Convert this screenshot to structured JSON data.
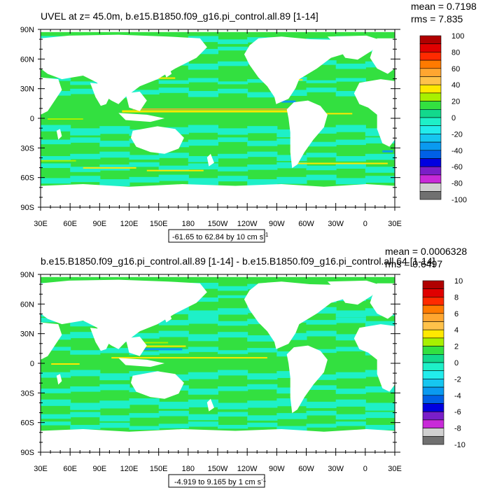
{
  "panels": [
    {
      "title": "UVEL at z=  45.0m, b.e15.B1850.f09_g16.pi_control.all.89 [1-14]",
      "stats": {
        "mean": "mean = 0.7198",
        "rms": "rms = 7.835"
      },
      "range_label": "-61.65 to 62.84 by 10 cm s",
      "range_unit_exp": "-1",
      "colorbar_labels": [
        "100",
        "80",
        "60",
        "40",
        "20",
        "0",
        "-20",
        "-40",
        "-60",
        "-80",
        "-100"
      ],
      "variant": "a"
    },
    {
      "title": "b.e15.B1850.f09_g16.pi_control.all.89 [1-14] - b.e15.B1850.f09_g16.pi_control.all.64 [1-14]",
      "stats": {
        "mean": "mean = 0.0006328",
        "rms": "rms = 0.6497"
      },
      "range_label": "-4.919 to 9.165 by 1 cm s",
      "range_unit_exp": "-1",
      "colorbar_labels": [
        "10",
        "8",
        "6",
        "4",
        "2",
        "0",
        "-2",
        "-4",
        "-6",
        "-8",
        "-10"
      ],
      "variant": "b"
    }
  ],
  "lat_labels": [
    "90N",
    "60N",
    "30N",
    "0",
    "30S",
    "60S",
    "90S"
  ],
  "lon_labels": [
    "30E",
    "60E",
    "90E",
    "120E",
    "150E",
    "180",
    "150W",
    "120W",
    "90W",
    "60W",
    "30W",
    "0",
    "30E"
  ],
  "colors": {
    "colorbar": [
      "#b00000",
      "#e00000",
      "#ff2a00",
      "#ff7a00",
      "#ffa630",
      "#ffc24a",
      "#ffe800",
      "#a8f000",
      "#33e040",
      "#12d98c",
      "#1ef0c8",
      "#22ecec",
      "#16c6f0",
      "#0a9af0",
      "#0060e6",
      "#0000e0",
      "#7a1ec8",
      "#c82ad8",
      "#d0d0d0",
      "#707070"
    ],
    "ocean_base": "#33e040",
    "ocean_alt": "#1ef0c8",
    "jet_yellow": "#ffe800",
    "jet_orange": "#ffa630",
    "jet_lime": "#a8f000",
    "jet_blue": "#0a9af0",
    "land": "#ffffff"
  }
}
